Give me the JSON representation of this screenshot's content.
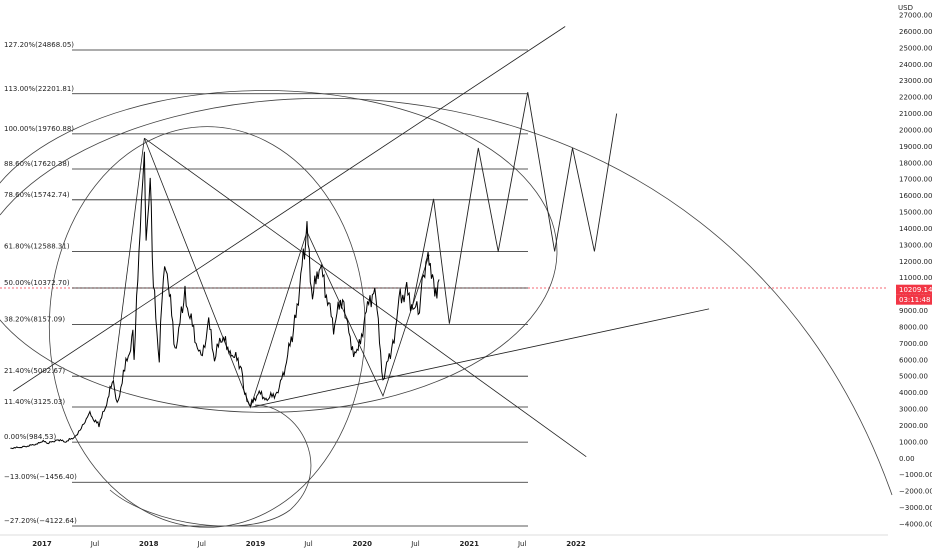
{
  "chart_data": {
    "type": "line",
    "currency": "USD",
    "y_range": [
      -4000,
      27000
    ],
    "y_ticks": [
      27000,
      26000,
      25000,
      24000,
      23000,
      22000,
      21000,
      20000,
      19000,
      18000,
      17000,
      16000,
      15000,
      14000,
      13000,
      12000,
      11000,
      10000,
      9000,
      8000,
      7000,
      6000,
      5000,
      4000,
      3000,
      2000,
      1000,
      0,
      -1000,
      -2000,
      -3000,
      -4000
    ],
    "y_tick_labels": [
      "27000.00",
      "26000.00",
      "25000.00",
      "24000.00",
      "23000.00",
      "22000.00",
      "21000.00",
      "20000.00",
      "19000.00",
      "18000.00",
      "17000.00",
      "16000.00",
      "15000.00",
      "14000.00",
      "13000.00",
      "12000.00",
      "11000.00",
      "10000.00",
      "9000.00",
      "8000.00",
      "7000.00",
      "6000.00",
      "5000.00",
      "4000.00",
      "3000.00",
      "2000.00",
      "1000.00",
      "0.00",
      "−1000.00",
      "−2000.00",
      "−3000.00",
      "−4000.00"
    ],
    "x_range": [
      "2016-09-15",
      "2022-08-15"
    ],
    "x_ticks": [
      {
        "label": "2017",
        "date": "2017-01-01"
      },
      {
        "label": "Jul",
        "date": "2017-07-01"
      },
      {
        "label": "2018",
        "date": "2018-01-01"
      },
      {
        "label": "Jul",
        "date": "2018-07-01"
      },
      {
        "label": "2019",
        "date": "2019-01-01"
      },
      {
        "label": "Jul",
        "date": "2019-07-01"
      },
      {
        "label": "2020",
        "date": "2020-01-01"
      },
      {
        "label": "Jul",
        "date": "2020-07-01"
      },
      {
        "label": "2021",
        "date": "2021-01-01"
      },
      {
        "label": "Jul",
        "date": "2021-07-01"
      },
      {
        "label": "2022",
        "date": "2022-01-01"
      }
    ],
    "last_price": {
      "value": 10209.14,
      "label": "10209.14",
      "countdown": "03:11:48",
      "color": "#f23645"
    },
    "fib_levels": [
      {
        "label": "127.20%(24868.05)",
        "value": 24868.05
      },
      {
        "label": "113.00%(22201.81)",
        "value": 22201.81
      },
      {
        "label": "100.00%(19760.88)",
        "value": 19760.88
      },
      {
        "label": "88.60%(17620.38)",
        "value": 17620.38
      },
      {
        "label": "78.60%(15742.74)",
        "value": 15742.74
      },
      {
        "label": "61.80%(12588.31)",
        "value": 12588.31
      },
      {
        "label": "50.00%(10372.70)",
        "value": 10372.7,
        "highlight": true
      },
      {
        "label": "38.20%(8157.09)",
        "value": 8157.09
      },
      {
        "label": "21.40%(5002.67)",
        "value": 5002.67
      },
      {
        "label": "11.40%(3125.03)",
        "value": 3125.03
      },
      {
        "label": "0.00%(984.53)",
        "value": 984.53
      },
      {
        "label": "−13.00%(−1456.40)",
        "value": -1456.4
      },
      {
        "label": "−27.20%(−4122.64)",
        "value": -4122.64
      }
    ],
    "price_series": [
      [
        "2016-09-15",
        610
      ],
      [
        "2016-11-01",
        700
      ],
      [
        "2016-12-20",
        900
      ],
      [
        "2017-01-05",
        1050
      ],
      [
        "2017-01-20",
        900
      ],
      [
        "2017-02-25",
        1150
      ],
      [
        "2017-03-20",
        1000
      ],
      [
        "2017-04-20",
        1250
      ],
      [
        "2017-05-15",
        1800
      ],
      [
        "2017-06-10",
        2750
      ],
      [
        "2017-07-15",
        2000
      ],
      [
        "2017-08-10",
        3400
      ],
      [
        "2017-09-02",
        4800
      ],
      [
        "2017-09-15",
        3300
      ],
      [
        "2017-10-15",
        5700
      ],
      [
        "2017-11-08",
        7400
      ],
      [
        "2017-11-12",
        5900
      ],
      [
        "2017-12-07",
        16000
      ],
      [
        "2017-12-17",
        19300
      ],
      [
        "2017-12-23",
        13500
      ],
      [
        "2018-01-06",
        17100
      ],
      [
        "2018-01-17",
        10500
      ],
      [
        "2018-02-06",
        6000
      ],
      [
        "2018-02-20",
        11400
      ],
      [
        "2018-03-05",
        11500
      ],
      [
        "2018-04-01",
        6600
      ],
      [
        "2018-05-05",
        9900
      ],
      [
        "2018-06-29",
        5900
      ],
      [
        "2018-07-25",
        8300
      ],
      [
        "2018-08-14",
        6000
      ],
      [
        "2018-09-05",
        7400
      ],
      [
        "2018-10-10",
        6500
      ],
      [
        "2018-11-14",
        5600
      ],
      [
        "2018-11-25",
        3900
      ],
      [
        "2018-12-15",
        3200
      ],
      [
        "2019-01-10",
        4000
      ],
      [
        "2019-02-10",
        3600
      ],
      [
        "2019-03-15",
        4000
      ],
      [
        "2019-04-05",
        5000
      ],
      [
        "2019-05-15",
        8200
      ],
      [
        "2019-06-26",
        13800
      ],
      [
        "2019-07-15",
        9700
      ],
      [
        "2019-08-07",
        12000
      ],
      [
        "2019-09-25",
        8000
      ],
      [
        "2019-10-26",
        10000
      ],
      [
        "2019-11-25",
        6600
      ],
      [
        "2019-12-18",
        6500
      ],
      [
        "2020-01-15",
        8900
      ],
      [
        "2020-02-13",
        10500
      ],
      [
        "2020-03-12",
        4800
      ],
      [
        "2020-04-15",
        7000
      ],
      [
        "2020-05-10",
        9800
      ],
      [
        "2020-06-01",
        10200
      ],
      [
        "2020-06-27",
        9000
      ],
      [
        "2020-07-15",
        9200
      ],
      [
        "2020-08-02",
        11800
      ],
      [
        "2020-08-17",
        12400
      ],
      [
        "2020-09-05",
        10000
      ],
      [
        "2020-09-20",
        10900
      ]
    ],
    "projection_path": [
      [
        "2020-06-20",
        9200
      ],
      [
        "2020-09-01",
        15800
      ],
      [
        "2020-10-25",
        8200
      ],
      [
        "2021-02-01",
        18900
      ],
      [
        "2021-04-10",
        12600
      ],
      [
        "2021-07-20",
        22300
      ],
      [
        "2021-10-20",
        12600
      ],
      [
        "2021-12-20",
        18900
      ],
      [
        "2022-03-05",
        12600
      ],
      [
        "2022-05-20",
        21000
      ]
    ],
    "trendlines": [
      {
        "from": [
          "2016-09-25",
          4100
        ],
        "to": [
          "2021-11-25",
          26300
        ]
      },
      {
        "from": [
          "2017-12-17",
          19500
        ],
        "to": [
          "2022-02-05",
          100
        ]
      },
      {
        "from": [
          "2018-12-20",
          3125
        ],
        "to": [
          "2023-04-01",
          9100
        ]
      }
    ],
    "zigzag": [
      [
        "2017-09-02",
        4800
      ],
      [
        "2017-12-17",
        19500
      ],
      [
        "2018-12-15",
        3100
      ],
      [
        "2019-06-26",
        13800
      ],
      [
        "2020-03-12",
        3800
      ],
      [
        "2020-08-17",
        12400
      ]
    ],
    "ellipses": [
      {
        "cx": [
          "2019-02-01",
          12600
        ],
        "rx_days": 1000,
        "ry": 9800
      },
      {
        "cx": [
          "2018-07-20",
          8000
        ],
        "rx_days": 540,
        "ry": 12200
      }
    ],
    "arcs": [
      {
        "label": "large-arc",
        "desc": "time-fib arc"
      }
    ],
    "annotations": []
  }
}
